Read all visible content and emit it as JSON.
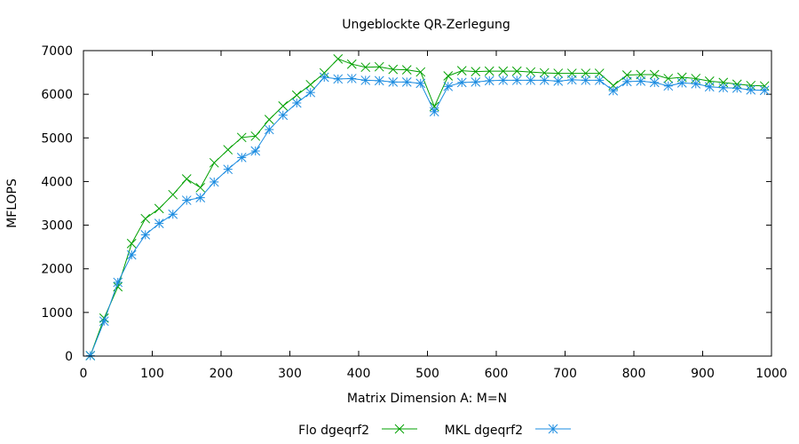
{
  "chart_data": {
    "type": "line",
    "title": "Ungeblockte QR-Zerlegung",
    "xlabel": "Matrix Dimension A: M=N",
    "ylabel": "MFLOPS",
    "xlim": [
      0,
      1000
    ],
    "ylim": [
      0,
      7000
    ],
    "xticks": [
      0,
      100,
      200,
      300,
      400,
      500,
      600,
      700,
      800,
      900,
      1000
    ],
    "yticks": [
      0,
      1000,
      2000,
      3000,
      4000,
      5000,
      6000,
      7000
    ],
    "grid": false,
    "legend_position": "bottom-center",
    "x": [
      10,
      30,
      50,
      70,
      90,
      110,
      130,
      150,
      170,
      190,
      210,
      230,
      250,
      270,
      290,
      310,
      330,
      350,
      370,
      390,
      410,
      430,
      450,
      470,
      490,
      510,
      530,
      550,
      570,
      590,
      610,
      630,
      650,
      670,
      690,
      710,
      730,
      750,
      770,
      790,
      810,
      830,
      850,
      870,
      890,
      910,
      930,
      950,
      970,
      990
    ],
    "series": [
      {
        "name": "Flo dgeqrf2",
        "color": "#00a000",
        "marker": "x",
        "values": [
          10,
          870,
          1590,
          2580,
          3150,
          3380,
          3700,
          4060,
          3860,
          4430,
          4730,
          5010,
          5040,
          5420,
          5730,
          5980,
          6220,
          6490,
          6810,
          6690,
          6620,
          6630,
          6570,
          6560,
          6510,
          5720,
          6420,
          6540,
          6520,
          6530,
          6530,
          6530,
          6510,
          6490,
          6480,
          6480,
          6480,
          6480,
          6200,
          6440,
          6450,
          6450,
          6360,
          6390,
          6360,
          6300,
          6270,
          6230,
          6200,
          6190
        ]
      },
      {
        "name": "MKL dgeqrf2",
        "color": "#1a8be0",
        "marker": "*",
        "values": [
          10,
          800,
          1690,
          2320,
          2780,
          3040,
          3250,
          3570,
          3630,
          3990,
          4280,
          4550,
          4700,
          5190,
          5520,
          5800,
          6040,
          6390,
          6350,
          6360,
          6320,
          6310,
          6280,
          6280,
          6250,
          5600,
          6180,
          6270,
          6280,
          6310,
          6320,
          6320,
          6320,
          6320,
          6300,
          6330,
          6320,
          6320,
          6080,
          6290,
          6300,
          6270,
          6190,
          6260,
          6240,
          6170,
          6150,
          6140,
          6100,
          6090
        ]
      }
    ]
  }
}
